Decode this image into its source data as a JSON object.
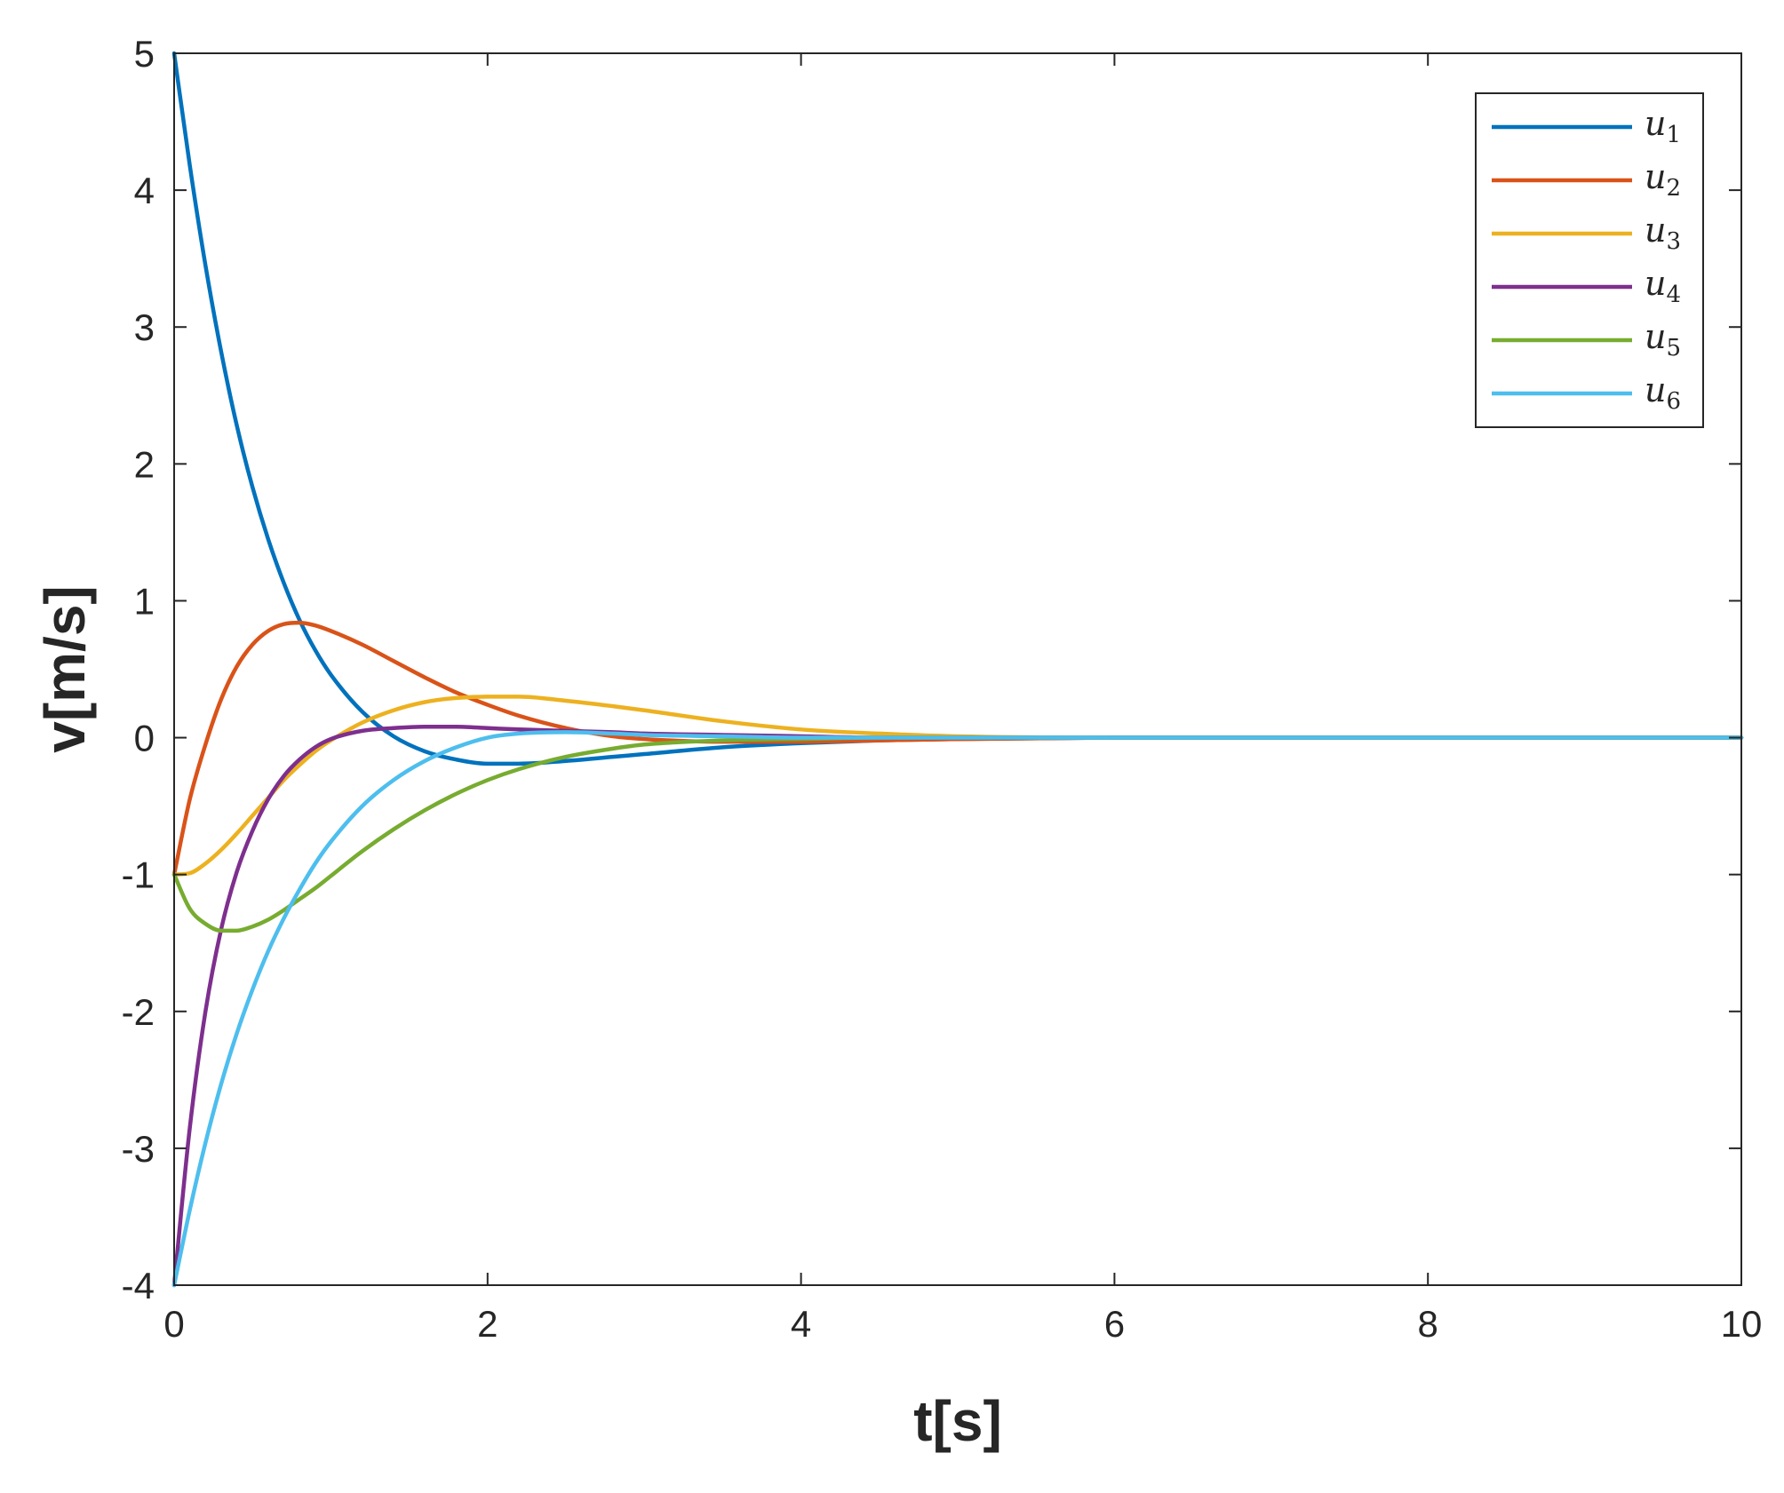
{
  "chart_data": {
    "type": "line",
    "title": "",
    "xlabel": "t[s]",
    "ylabel": "v[m/s]",
    "xlim": [
      0,
      10
    ],
    "ylim": [
      -4,
      5
    ],
    "xticks": [
      0,
      2,
      4,
      6,
      8,
      10
    ],
    "yticks": [
      5,
      4,
      3,
      2,
      1,
      0,
      -1,
      -2,
      -3,
      -4
    ],
    "grid": false,
    "legend_position": "top-right",
    "x": [
      0,
      0.1,
      0.2,
      0.3,
      0.4,
      0.5,
      0.6,
      0.7,
      0.8,
      0.9,
      1.0,
      1.2,
      1.4,
      1.6,
      1.8,
      2.0,
      2.2,
      2.5,
      2.8,
      3.0,
      3.5,
      4.0,
      4.5,
      5.0,
      6.0,
      7.0,
      8.0,
      9.0,
      10.0
    ],
    "series": [
      {
        "name": "u",
        "subscript": "1",
        "color": "#0072bd",
        "values": [
          5.0,
          4.18,
          3.45,
          2.82,
          2.28,
          1.83,
          1.45,
          1.13,
          0.86,
          0.64,
          0.46,
          0.19,
          0.01,
          -0.1,
          -0.16,
          -0.19,
          -0.19,
          -0.17,
          -0.14,
          -0.12,
          -0.07,
          -0.04,
          -0.02,
          -0.01,
          0.0,
          0.0,
          0.0,
          0.0,
          0.0
        ]
      },
      {
        "name": "u",
        "subscript": "2",
        "color": "#d95319",
        "values": [
          -1.0,
          -0.45,
          -0.05,
          0.28,
          0.52,
          0.68,
          0.78,
          0.83,
          0.84,
          0.82,
          0.78,
          0.68,
          0.56,
          0.44,
          0.33,
          0.24,
          0.16,
          0.07,
          0.01,
          -0.01,
          -0.03,
          -0.03,
          -0.02,
          -0.01,
          0.0,
          0.0,
          0.0,
          0.0,
          0.0
        ]
      },
      {
        "name": "u",
        "subscript": "3",
        "color": "#edb120",
        "values": [
          -1.0,
          -0.99,
          -0.92,
          -0.82,
          -0.7,
          -0.57,
          -0.44,
          -0.31,
          -0.2,
          -0.1,
          -0.02,
          0.11,
          0.2,
          0.26,
          0.29,
          0.3,
          0.3,
          0.27,
          0.23,
          0.2,
          0.12,
          0.06,
          0.03,
          0.01,
          0.0,
          0.0,
          0.0,
          0.0,
          0.0
        ]
      },
      {
        "name": "u",
        "subscript": "4",
        "color": "#7e2f8e",
        "values": [
          -4.0,
          -2.85,
          -2.0,
          -1.4,
          -0.98,
          -0.68,
          -0.45,
          -0.28,
          -0.16,
          -0.07,
          -0.01,
          0.05,
          0.07,
          0.08,
          0.08,
          0.07,
          0.06,
          0.05,
          0.04,
          0.03,
          0.02,
          0.01,
          0.0,
          0.0,
          0.0,
          0.0,
          0.0,
          0.0,
          0.0
        ]
      },
      {
        "name": "u",
        "subscript": "5",
        "color": "#77ac30",
        "values": [
          -1.0,
          -1.25,
          -1.36,
          -1.41,
          -1.41,
          -1.38,
          -1.33,
          -1.26,
          -1.18,
          -1.1,
          -1.01,
          -0.83,
          -0.67,
          -0.53,
          -0.41,
          -0.31,
          -0.23,
          -0.14,
          -0.08,
          -0.05,
          -0.02,
          -0.01,
          0.0,
          0.0,
          0.0,
          0.0,
          0.0,
          0.0,
          0.0
        ]
      },
      {
        "name": "u",
        "subscript": "6",
        "color": "#4dbeee",
        "values": [
          -4.0,
          -3.45,
          -2.96,
          -2.53,
          -2.16,
          -1.84,
          -1.56,
          -1.32,
          -1.11,
          -0.92,
          -0.76,
          -0.5,
          -0.31,
          -0.17,
          -0.07,
          0.0,
          0.03,
          0.04,
          0.03,
          0.02,
          0.01,
          0.0,
          0.0,
          0.0,
          0.0,
          0.0,
          0.0,
          0.0,
          0.0
        ]
      }
    ]
  }
}
